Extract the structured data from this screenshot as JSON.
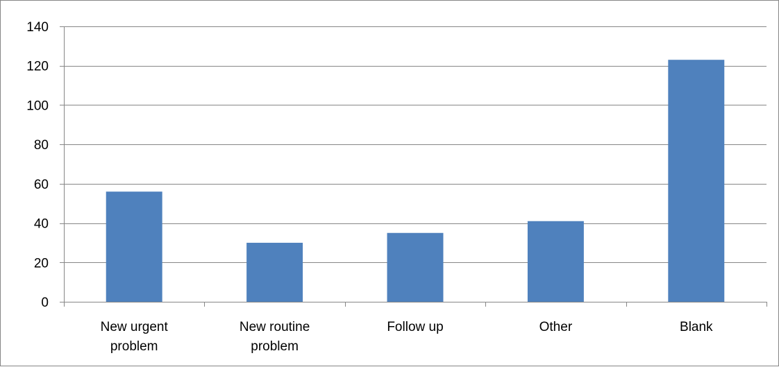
{
  "colors": {
    "bar": "#4f81bd",
    "grid": "#868686",
    "text": "#000000"
  },
  "chart_data": {
    "type": "bar",
    "categories": [
      [
        "New urgent",
        "problem"
      ],
      [
        "New routine",
        "problem"
      ],
      [
        "Follow up"
      ],
      [
        "Other"
      ],
      [
        "Blank"
      ]
    ],
    "values": [
      56,
      30,
      35,
      41,
      123
    ],
    "title": "",
    "xlabel": "",
    "ylabel": "",
    "ylim": [
      0,
      140
    ],
    "yticks": [
      0,
      20,
      40,
      60,
      80,
      100,
      120,
      140
    ],
    "grid": true,
    "legend": "none"
  }
}
